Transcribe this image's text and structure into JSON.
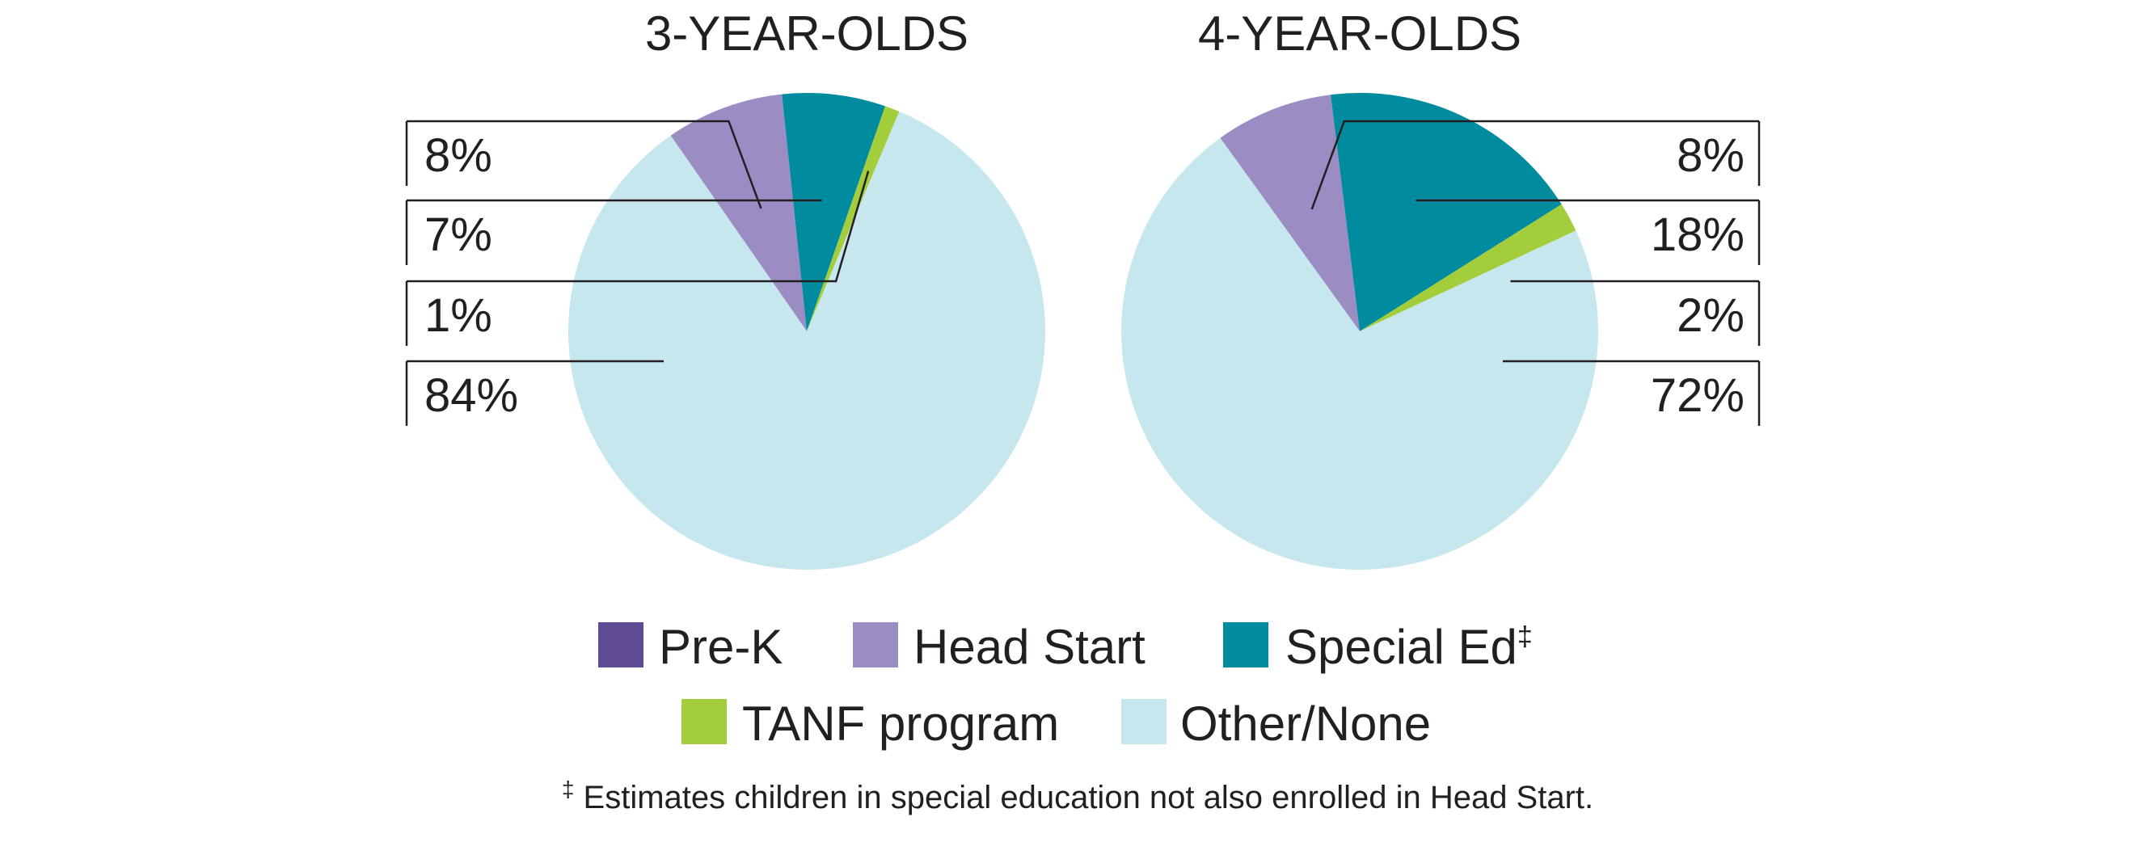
{
  "chart_data": [
    {
      "type": "pie",
      "title": "3-YEAR-OLDS",
      "slices": [
        {
          "label": "Pre-K",
          "value": 0,
          "display": ""
        },
        {
          "label": "Head Start",
          "value": 8,
          "display": "8%"
        },
        {
          "label": "Special Ed‡",
          "value": 7,
          "display": "7%"
        },
        {
          "label": "TANF program",
          "value": 1,
          "display": "1%"
        },
        {
          "label": "Other/None",
          "value": 84,
          "display": "84%"
        }
      ],
      "label_side": "left"
    },
    {
      "type": "pie",
      "title": "4-YEAR-OLDS",
      "slices": [
        {
          "label": "Pre-K",
          "value": 0,
          "display": ""
        },
        {
          "label": "Head Start",
          "value": 8,
          "display": "8%"
        },
        {
          "label": "Special Ed‡",
          "value": 18,
          "display": "18%"
        },
        {
          "label": "TANF program",
          "value": 2,
          "display": "2%"
        },
        {
          "label": "Other/None",
          "value": 72,
          "display": "72%"
        }
      ],
      "label_side": "right"
    }
  ],
  "legend": [
    {
      "label": "Pre-K",
      "color": "#5f4b93"
    },
    {
      "label": "Head Start",
      "color": "#9b8dc4"
    },
    {
      "label": "Special Ed",
      "sup": "‡",
      "color": "#008b9e"
    },
    {
      "label": "TANF program",
      "color": "#a3cd3b"
    },
    {
      "label": "Other/None",
      "color": "#c6e7ee"
    }
  ],
  "footnote": {
    "mark": "‡",
    "text": " Estimates children in special education not also enrolled in Head Start."
  }
}
